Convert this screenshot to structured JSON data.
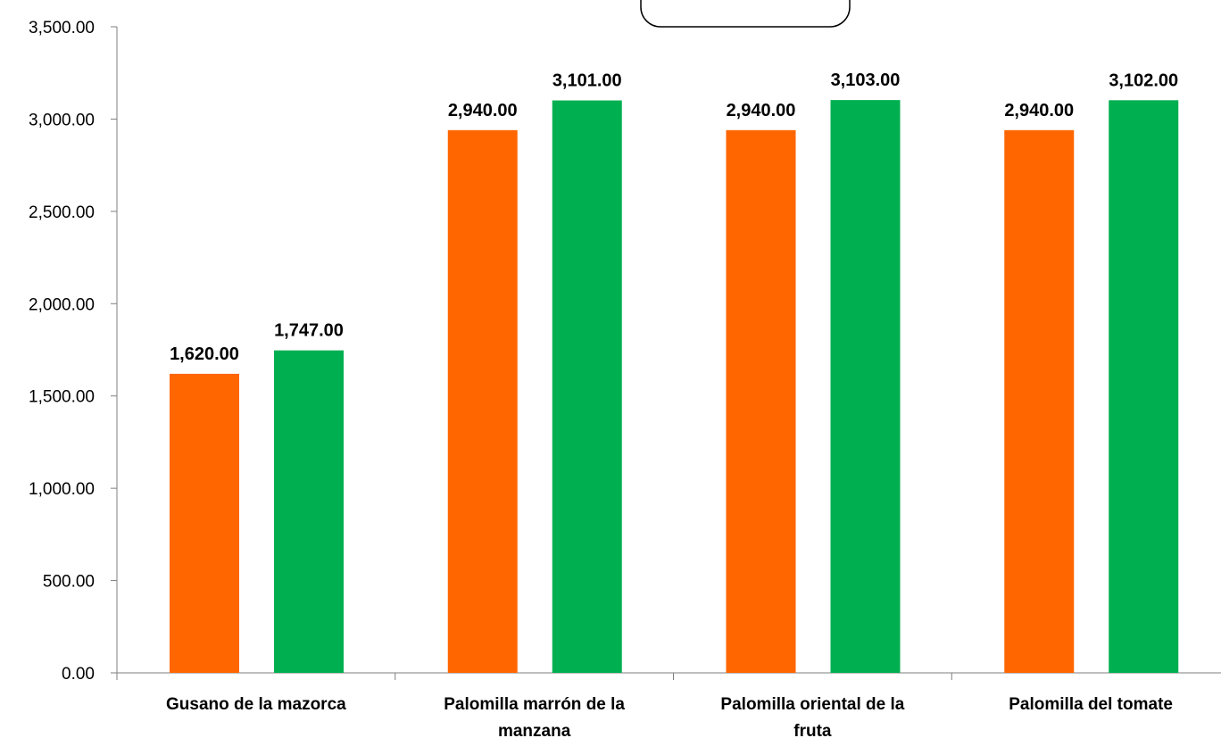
{
  "chart_data": {
    "type": "bar",
    "title": "",
    "xlabel": "",
    "ylabel": "",
    "categories": [
      "Gusano de la mazorca",
      "Palomilla marrón de la manzana",
      "Palomilla oriental de la fruta",
      "Palomilla del tomate"
    ],
    "category_lines": [
      [
        "Gusano de la mazorca"
      ],
      [
        "Palomilla marrón de la",
        "manzana"
      ],
      [
        "Palomilla oriental de la",
        "fruta"
      ],
      [
        "Palomilla del tomate"
      ]
    ],
    "series": [
      {
        "color": "#ff6600",
        "values": [
          1620,
          2940,
          2940,
          2940
        ],
        "labels": [
          "1,620.00",
          "2,940.00",
          "2,940.00",
          "2,940.00"
        ]
      },
      {
        "color": "#00b050",
        "values": [
          1747,
          3101,
          3103,
          3102
        ],
        "labels": [
          "1,747.00",
          "3,101.00",
          "3,103.00",
          "3,102.00"
        ]
      }
    ],
    "ylim": [
      0,
      3500
    ],
    "yticks": [
      0,
      500,
      1000,
      1500,
      2000,
      2500,
      3000,
      3500
    ],
    "ytick_labels": [
      "0.00",
      "500.00",
      "1,000.00",
      "1,500.00",
      "2,000.00",
      "2,500.00",
      "3,000.00",
      "3,500.00"
    ],
    "grid": false,
    "legend": "none"
  }
}
